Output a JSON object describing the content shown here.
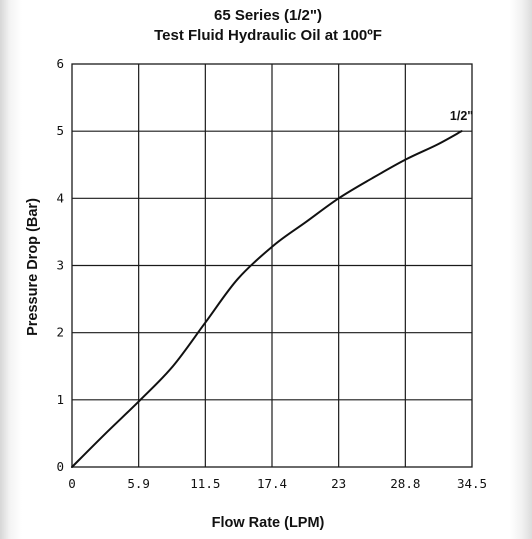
{
  "chart_data": {
    "type": "line",
    "title": "65 Series (1/2\")",
    "subtitle": "Test Fluid Hydraulic Oil at 100ºF",
    "xlabel": "Flow Rate (LPM)",
    "ylabel": "Pressure Drop (Bar)",
    "x_ticks": [
      "0",
      "5.9",
      "11.5",
      "17.4",
      "23",
      "28.8",
      "34.5"
    ],
    "y_ticks": [
      "0",
      "1",
      "2",
      "3",
      "4",
      "5",
      "6"
    ],
    "xlim": [
      0,
      34.5
    ],
    "ylim": [
      0,
      6
    ],
    "grid": true,
    "series": [
      {
        "name": "1/2\"",
        "x": [
          0,
          2.9,
          5.9,
          8.7,
          11.5,
          14.3,
          17.4,
          20.2,
          23,
          25.9,
          28.8,
          31.5,
          33.6
        ],
        "y": [
          0,
          0.5,
          1.0,
          1.5,
          2.15,
          2.8,
          3.3,
          3.65,
          4.0,
          4.3,
          4.58,
          4.8,
          5.0
        ]
      }
    ]
  }
}
